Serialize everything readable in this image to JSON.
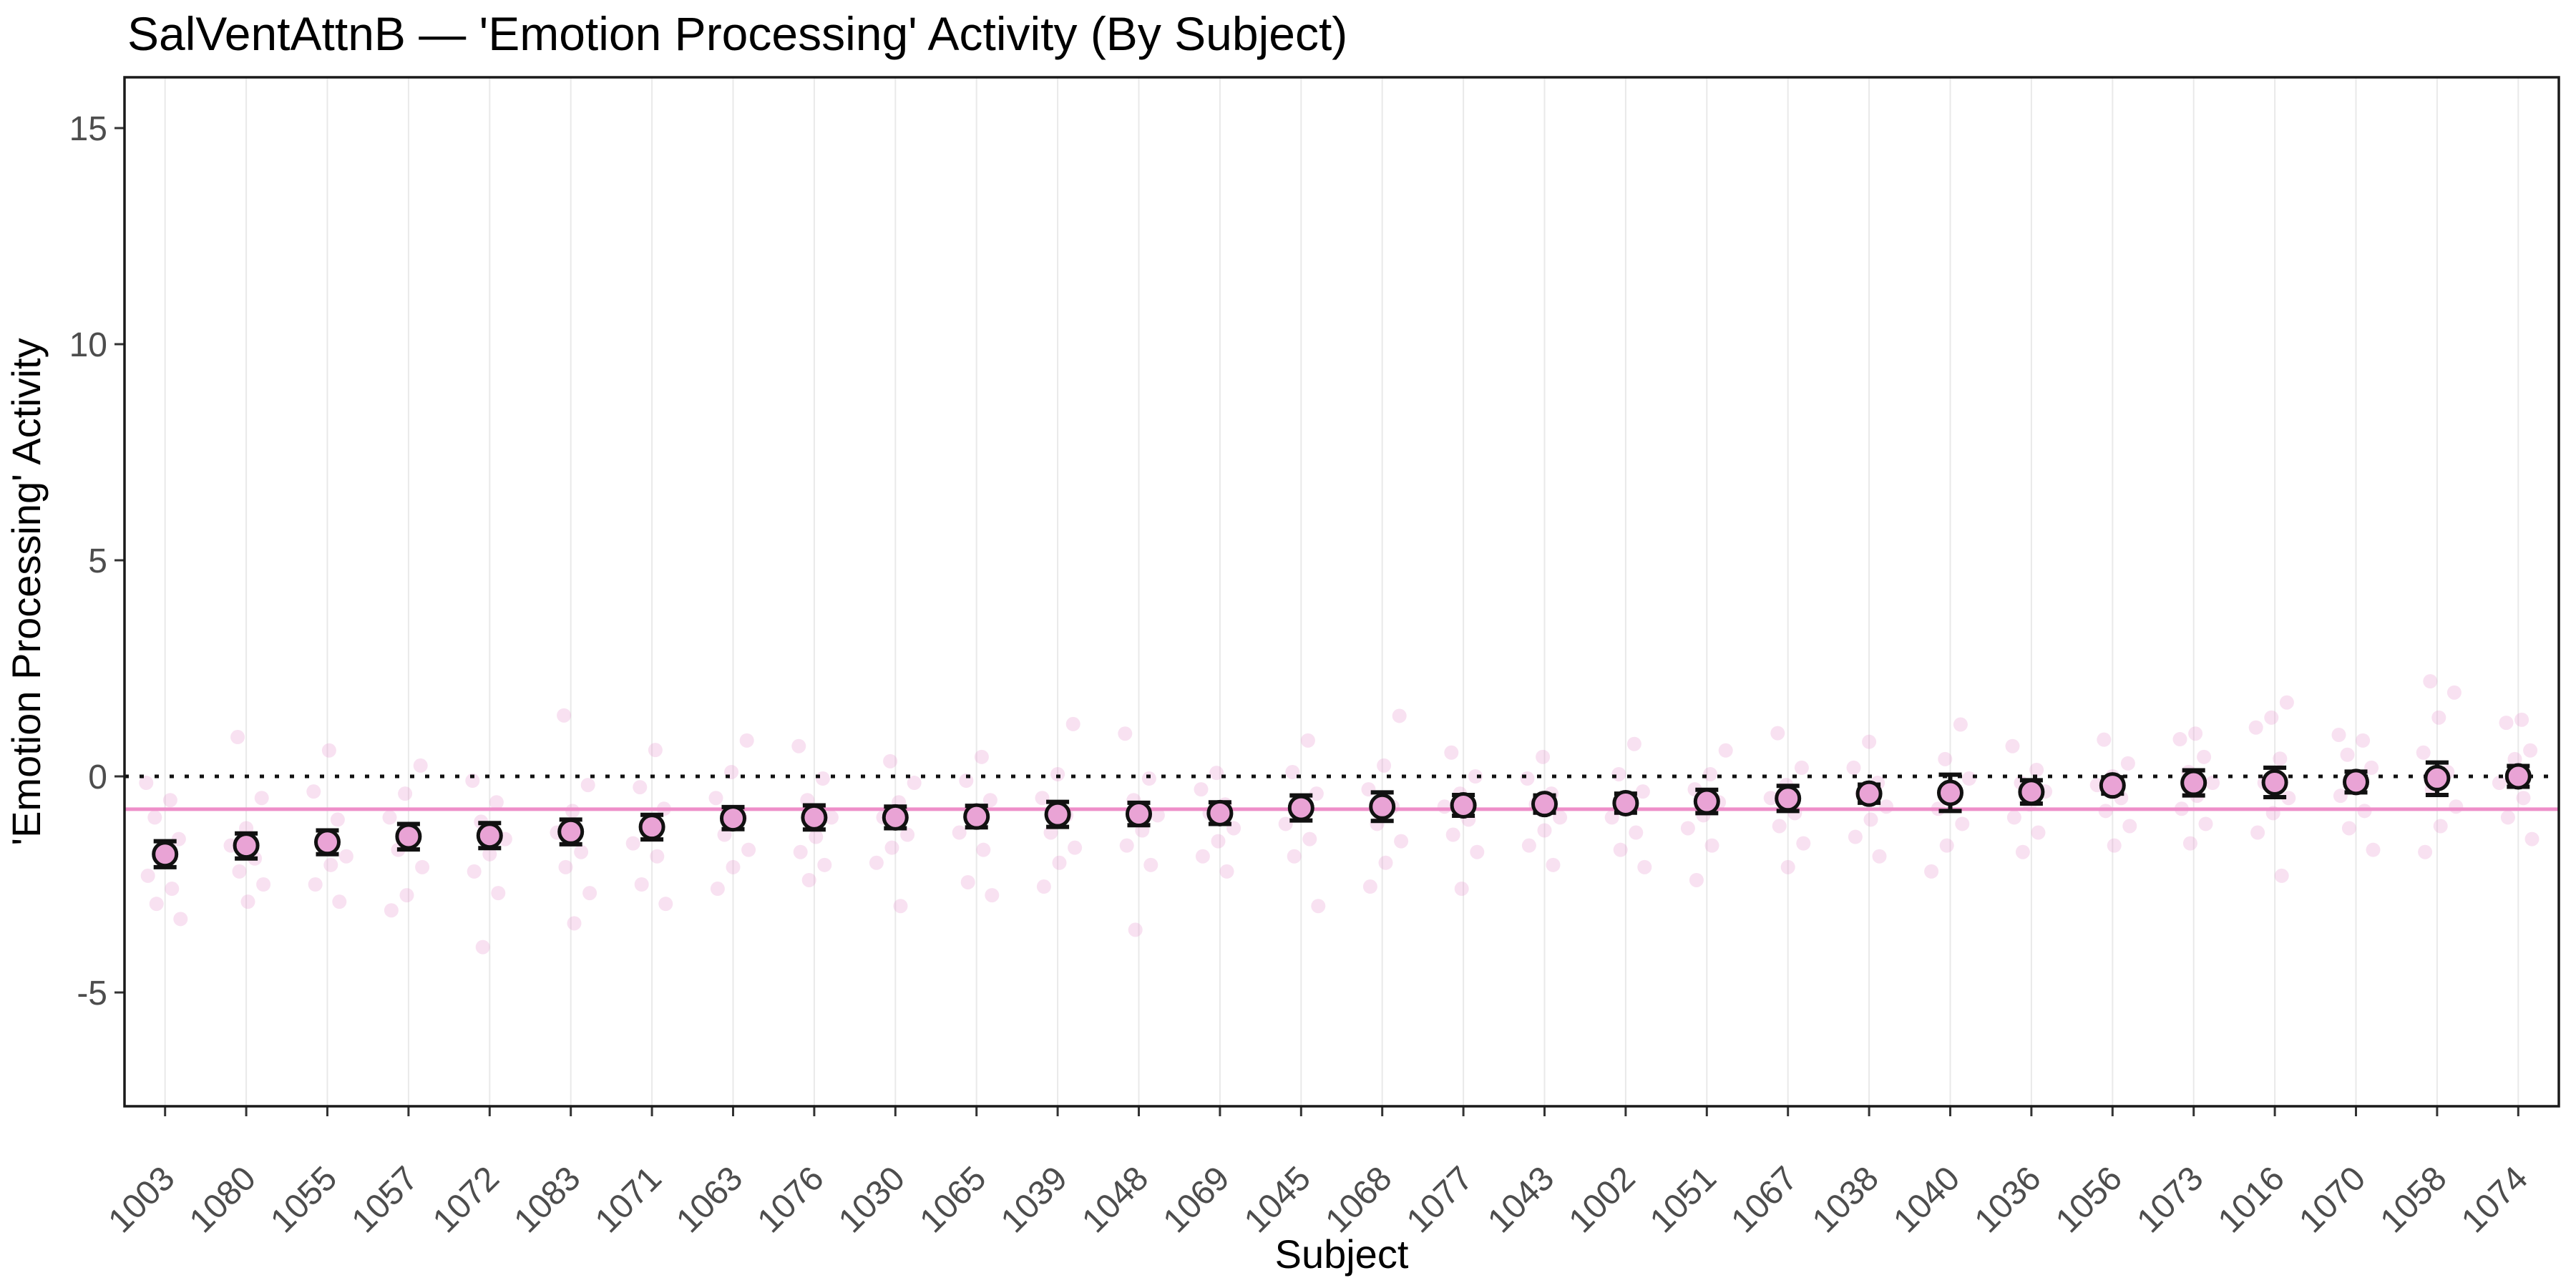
{
  "title": "SalVentAttnB — 'Emotion Processing' Activity (By Subject)",
  "x_axis_title": "Subject",
  "y_axis_title": "'Emotion Processing' Activity",
  "colors": {
    "background": "#ffffff",
    "panel_border": "#1a1a1a",
    "gridline": "#e9e9e9",
    "axis_text": "#4d4d4d",
    "tick_mark": "#333333",
    "zero_line": "#111111",
    "group_mean_line": "#ee8fc9",
    "error_bar": "#111111",
    "mean_point_fill": "#e9a3d5",
    "mean_point_stroke": "#111111",
    "individual_dot": "#e794cb"
  },
  "chart_data": {
    "type": "scatter",
    "title": "SalVentAttnB — 'Emotion Processing' Activity (By Subject)",
    "xlabel": "Subject",
    "ylabel": "'Emotion Processing' Activity",
    "legend_position": "none",
    "grid": "vertical-only",
    "y_ticks": [
      15,
      10,
      5,
      0,
      -5
    ],
    "ylim": [
      -7.6,
      16.2
    ],
    "zero_reference_line": 0,
    "group_mean_line": -0.76,
    "subjects": [
      "1003",
      "1080",
      "1055",
      "1057",
      "1072",
      "1083",
      "1071",
      "1063",
      "1076",
      "1030",
      "1065",
      "1039",
      "1048",
      "1069",
      "1045",
      "1068",
      "1077",
      "1043",
      "1002",
      "1051",
      "1067",
      "1038",
      "1040",
      "1036",
      "1056",
      "1073",
      "1016",
      "1070",
      "1058",
      "1074"
    ],
    "series": [
      {
        "name": "subject_mean",
        "values": [
          -1.8,
          -1.6,
          -1.52,
          -1.39,
          -1.37,
          -1.28,
          -1.17,
          -0.97,
          -0.95,
          -0.95,
          -0.93,
          -0.88,
          -0.87,
          -0.85,
          -0.73,
          -0.7,
          -0.67,
          -0.64,
          -0.62,
          -0.58,
          -0.51,
          -0.4,
          -0.38,
          -0.36,
          -0.21,
          -0.15,
          -0.14,
          -0.13,
          -0.04,
          0.0
        ]
      },
      {
        "name": "ci_low",
        "values": [
          -2.1,
          -1.9,
          -1.8,
          -1.69,
          -1.66,
          -1.57,
          -1.46,
          -1.22,
          -1.23,
          -1.2,
          -1.18,
          -1.17,
          -1.13,
          -1.1,
          -1.02,
          -1.03,
          -0.91,
          -0.84,
          -0.84,
          -0.85,
          -0.8,
          -0.61,
          -0.8,
          -0.63,
          -0.4,
          -0.44,
          -0.48,
          -0.37,
          -0.43,
          -0.24
        ]
      },
      {
        "name": "ci_high",
        "values": [
          -1.5,
          -1.32,
          -1.25,
          -1.1,
          -1.08,
          -1.0,
          -0.89,
          -0.71,
          -0.67,
          -0.7,
          -0.68,
          -0.59,
          -0.61,
          -0.6,
          -0.44,
          -0.37,
          -0.43,
          -0.44,
          -0.4,
          -0.31,
          -0.22,
          -0.19,
          0.04,
          -0.09,
          -0.02,
          0.14,
          0.2,
          0.11,
          0.32,
          0.24
        ]
      }
    ],
    "individual_runs": [
      [
        -0.15,
        -0.55,
        -0.95,
        -1.45,
        -1.9,
        -2.3,
        -2.6,
        -2.95,
        -3.3
      ],
      [
        0.91,
        -0.5,
        -1.2,
        -1.6,
        -1.9,
        -2.2,
        -2.5,
        -2.9
      ],
      [
        0.6,
        -0.35,
        -1.0,
        -1.5,
        -1.85,
        -2.05,
        -2.5,
        -2.9
      ],
      [
        0.25,
        -0.4,
        -0.95,
        -1.4,
        -1.7,
        -2.1,
        -2.75,
        -3.1
      ],
      [
        -0.1,
        -0.6,
        -1.05,
        -1.45,
        -1.8,
        -2.2,
        -2.7,
        -3.95
      ],
      [
        1.41,
        -0.2,
        -0.8,
        -1.3,
        -1.75,
        -2.1,
        -2.7,
        -3.4
      ],
      [
        0.61,
        -0.25,
        -0.75,
        -1.15,
        -1.55,
        -1.85,
        -2.5,
        -2.95
      ],
      [
        0.83,
        0.1,
        -0.5,
        -0.95,
        -1.35,
        -1.7,
        -2.1,
        -2.6
      ],
      [
        0.7,
        -0.05,
        -0.55,
        -0.95,
        -1.4,
        -1.75,
        -2.05,
        -2.4
      ],
      [
        0.35,
        -0.15,
        -0.6,
        -0.95,
        -1.35,
        -1.65,
        -2.0,
        -3.0
      ],
      [
        0.45,
        -0.1,
        -0.55,
        -0.95,
        -1.3,
        -1.7,
        -2.45,
        -2.75
      ],
      [
        1.21,
        0.05,
        -0.5,
        -0.9,
        -1.3,
        -1.65,
        -2.0,
        -2.55
      ],
      [
        0.99,
        -0.05,
        -0.55,
        -0.9,
        -1.25,
        -1.6,
        -2.05,
        -3.55
      ],
      [
        0.08,
        -0.3,
        -0.65,
        -0.85,
        -1.2,
        -1.5,
        -1.85,
        -2.2
      ],
      [
        0.83,
        0.1,
        -0.4,
        -0.75,
        -1.1,
        -1.45,
        -1.85,
        -3.0
      ],
      [
        1.4,
        0.25,
        -0.3,
        -0.7,
        -1.1,
        -1.5,
        -2.0,
        -2.55
      ],
      [
        0.55,
        0.0,
        -0.4,
        -0.7,
        -1.0,
        -1.35,
        -1.75,
        -2.6
      ],
      [
        0.45,
        -0.05,
        -0.4,
        -0.65,
        -0.95,
        -1.25,
        -1.6,
        -2.05
      ],
      [
        0.75,
        0.05,
        -0.35,
        -0.6,
        -0.95,
        -1.3,
        -1.7,
        -2.1
      ],
      [
        0.6,
        0.05,
        -0.3,
        -0.6,
        -0.9,
        -1.2,
        -1.6,
        -2.4
      ],
      [
        1.0,
        0.2,
        -0.2,
        -0.5,
        -0.85,
        -1.15,
        -1.55,
        -2.1
      ],
      [
        0.8,
        0.2,
        -0.15,
        -0.4,
        -0.7,
        -1.0,
        -1.4,
        -1.85
      ],
      [
        1.2,
        0.4,
        -0.05,
        -0.4,
        -0.75,
        -1.1,
        -1.6,
        -2.2
      ],
      [
        0.7,
        0.15,
        -0.15,
        -0.35,
        -0.65,
        -0.95,
        -1.3,
        -1.75
      ],
      [
        0.85,
        0.3,
        0.0,
        -0.2,
        -0.5,
        -0.8,
        -1.15,
        -1.6
      ],
      [
        0.99,
        0.86,
        0.45,
        0.1,
        -0.15,
        -0.45,
        -0.75,
        -1.1,
        -1.55
      ],
      [
        1.71,
        1.36,
        1.13,
        0.41,
        -0.15,
        -0.5,
        -0.85,
        -1.3,
        -2.3
      ],
      [
        0.96,
        0.83,
        0.5,
        0.2,
        -0.15,
        -0.45,
        -0.8,
        -1.2,
        -1.7
      ],
      [
        2.2,
        1.94,
        1.36,
        0.55,
        0.1,
        -0.3,
        -0.7,
        -1.15,
        -1.75
      ],
      [
        1.31,
        1.24,
        0.6,
        0.4,
        -0.15,
        -0.5,
        -0.95,
        -1.45
      ]
    ]
  }
}
